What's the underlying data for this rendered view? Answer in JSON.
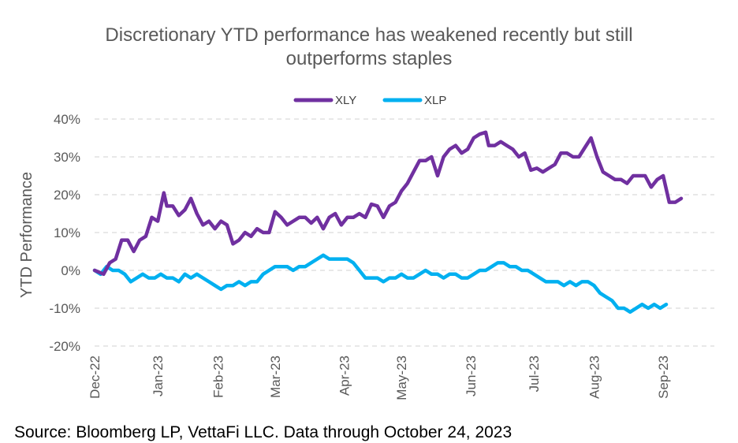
{
  "chart_data": {
    "type": "line",
    "title_lines": [
      "Discretionary YTD performance has weakened recently but still",
      "outperforms staples"
    ],
    "ylabel": "YTD Performance",
    "source": "Source: Bloomberg LP, VettaFi LLC. Data through October 24, 2023",
    "ylim": [
      -20,
      40
    ],
    "yticks": [
      {
        "value": 40,
        "label": "40%"
      },
      {
        "value": 30,
        "label": "30%"
      },
      {
        "value": 20,
        "label": "20%"
      },
      {
        "value": 10,
        "label": "10%"
      },
      {
        "value": 0,
        "label": "0%"
      },
      {
        "value": -10,
        "label": "-10%"
      },
      {
        "value": -20,
        "label": "-20%"
      }
    ],
    "xlim": [
      0,
      206
    ],
    "xticks": [
      {
        "value": 0,
        "label": "Dec-22"
      },
      {
        "value": 21,
        "label": "Jan-23"
      },
      {
        "value": 41,
        "label": "Feb-23"
      },
      {
        "value": 60,
        "label": "Mar-23"
      },
      {
        "value": 83,
        "label": "Apr-23"
      },
      {
        "value": 102,
        "label": "May-23"
      },
      {
        "value": 125,
        "label": "Jun-23"
      },
      {
        "value": 146,
        "label": "Jul-23"
      },
      {
        "value": 166,
        "label": "Aug-23"
      },
      {
        "value": 189,
        "label": "Sep-23"
      }
    ],
    "grid": true,
    "legend": "top-center",
    "series": [
      {
        "name": "XLY",
        "color": "#7030A0",
        "points": [
          [
            0,
            0
          ],
          [
            3,
            -1
          ],
          [
            5,
            2
          ],
          [
            7,
            3
          ],
          [
            9,
            8
          ],
          [
            11,
            8
          ],
          [
            13,
            5
          ],
          [
            15,
            8
          ],
          [
            17,
            9
          ],
          [
            19,
            14
          ],
          [
            21,
            13
          ],
          [
            23,
            20.5
          ],
          [
            24,
            17
          ],
          [
            26,
            17
          ],
          [
            28,
            14.5
          ],
          [
            30,
            16
          ],
          [
            32,
            19
          ],
          [
            34,
            15
          ],
          [
            36,
            12
          ],
          [
            38,
            13
          ],
          [
            40,
            11
          ],
          [
            42,
            13
          ],
          [
            44,
            12
          ],
          [
            46,
            7
          ],
          [
            48,
            8
          ],
          [
            50,
            10
          ],
          [
            52,
            9
          ],
          [
            54,
            11
          ],
          [
            56,
            10
          ],
          [
            58,
            10
          ],
          [
            60,
            15.5
          ],
          [
            62,
            14
          ],
          [
            64,
            12
          ],
          [
            66,
            13
          ],
          [
            68,
            14
          ],
          [
            70,
            14
          ],
          [
            72,
            12.5
          ],
          [
            74,
            14
          ],
          [
            76,
            11
          ],
          [
            78,
            14
          ],
          [
            80,
            15
          ],
          [
            82,
            12
          ],
          [
            84,
            14
          ],
          [
            86,
            14
          ],
          [
            88,
            15
          ],
          [
            90,
            14
          ],
          [
            92,
            17.5
          ],
          [
            94,
            17
          ],
          [
            96,
            14
          ],
          [
            98,
            17
          ],
          [
            100,
            18
          ],
          [
            102,
            21
          ],
          [
            104,
            23
          ],
          [
            106,
            26
          ],
          [
            108,
            29
          ],
          [
            110,
            29
          ],
          [
            112,
            30
          ],
          [
            114,
            25
          ],
          [
            116,
            30
          ],
          [
            118,
            32
          ],
          [
            120,
            33
          ],
          [
            122,
            31
          ],
          [
            124,
            32
          ],
          [
            126,
            35
          ],
          [
            128,
            36
          ],
          [
            130,
            36.5
          ],
          [
            131,
            33
          ],
          [
            133,
            33
          ],
          [
            135,
            34
          ],
          [
            137,
            33
          ],
          [
            139,
            32
          ],
          [
            141,
            30
          ],
          [
            143,
            31
          ],
          [
            145,
            26.5
          ],
          [
            147,
            27
          ],
          [
            149,
            26
          ],
          [
            151,
            27
          ],
          [
            153,
            28
          ],
          [
            155,
            31
          ],
          [
            157,
            31
          ],
          [
            159,
            30
          ],
          [
            161,
            30
          ],
          [
            163,
            32.5
          ],
          [
            165,
            35
          ],
          [
            167,
            30
          ],
          [
            169,
            26
          ],
          [
            171,
            25
          ],
          [
            173,
            24
          ],
          [
            175,
            24
          ],
          [
            177,
            23
          ],
          [
            179,
            25
          ],
          [
            181,
            25
          ],
          [
            183,
            25
          ],
          [
            185,
            22
          ],
          [
            187,
            24
          ],
          [
            189,
            25
          ],
          [
            191,
            18
          ],
          [
            193,
            18
          ],
          [
            195,
            19
          ]
        ]
      },
      {
        "name": "XLP",
        "color": "#00B0F0",
        "points": [
          [
            0,
            0
          ],
          [
            2,
            -1
          ],
          [
            4,
            1
          ],
          [
            6,
            0
          ],
          [
            8,
            0
          ],
          [
            10,
            -1
          ],
          [
            12,
            -3
          ],
          [
            14,
            -2
          ],
          [
            16,
            -1
          ],
          [
            18,
            -2
          ],
          [
            20,
            -2
          ],
          [
            22,
            -1
          ],
          [
            24,
            -2
          ],
          [
            26,
            -2
          ],
          [
            28,
            -3
          ],
          [
            30,
            -1
          ],
          [
            32,
            -2
          ],
          [
            34,
            -1
          ],
          [
            36,
            -2
          ],
          [
            38,
            -3
          ],
          [
            40,
            -4
          ],
          [
            42,
            -5
          ],
          [
            44,
            -4
          ],
          [
            46,
            -4
          ],
          [
            48,
            -3
          ],
          [
            50,
            -4
          ],
          [
            52,
            -3
          ],
          [
            54,
            -3
          ],
          [
            56,
            -1
          ],
          [
            58,
            0
          ],
          [
            60,
            1
          ],
          [
            62,
            1
          ],
          [
            64,
            1
          ],
          [
            66,
            0
          ],
          [
            68,
            1
          ],
          [
            70,
            1
          ],
          [
            72,
            2
          ],
          [
            74,
            3
          ],
          [
            76,
            4
          ],
          [
            78,
            3
          ],
          [
            80,
            3
          ],
          [
            82,
            3
          ],
          [
            84,
            3
          ],
          [
            86,
            2
          ],
          [
            88,
            0
          ],
          [
            90,
            -2
          ],
          [
            92,
            -2
          ],
          [
            94,
            -2
          ],
          [
            96,
            -3
          ],
          [
            98,
            -2
          ],
          [
            100,
            -2
          ],
          [
            102,
            -1
          ],
          [
            104,
            -2
          ],
          [
            106,
            -2
          ],
          [
            108,
            -1
          ],
          [
            110,
            0
          ],
          [
            112,
            -1
          ],
          [
            114,
            -1
          ],
          [
            116,
            -2
          ],
          [
            118,
            -1
          ],
          [
            120,
            -1
          ],
          [
            122,
            -2
          ],
          [
            124,
            -2
          ],
          [
            126,
            -1
          ],
          [
            128,
            0
          ],
          [
            130,
            0
          ],
          [
            132,
            1
          ],
          [
            134,
            2
          ],
          [
            136,
            2
          ],
          [
            138,
            1
          ],
          [
            140,
            1
          ],
          [
            142,
            0
          ],
          [
            144,
            0
          ],
          [
            146,
            -1
          ],
          [
            148,
            -2
          ],
          [
            150,
            -3
          ],
          [
            152,
            -3
          ],
          [
            154,
            -3
          ],
          [
            156,
            -4
          ],
          [
            158,
            -3
          ],
          [
            160,
            -4
          ],
          [
            162,
            -3
          ],
          [
            164,
            -3
          ],
          [
            166,
            -4
          ],
          [
            168,
            -6
          ],
          [
            170,
            -7
          ],
          [
            172,
            -8
          ],
          [
            174,
            -10
          ],
          [
            176,
            -10
          ],
          [
            178,
            -11
          ],
          [
            180,
            -10
          ],
          [
            182,
            -9
          ],
          [
            184,
            -10
          ],
          [
            186,
            -9
          ],
          [
            188,
            -10
          ],
          [
            190,
            -9
          ]
        ]
      }
    ]
  }
}
